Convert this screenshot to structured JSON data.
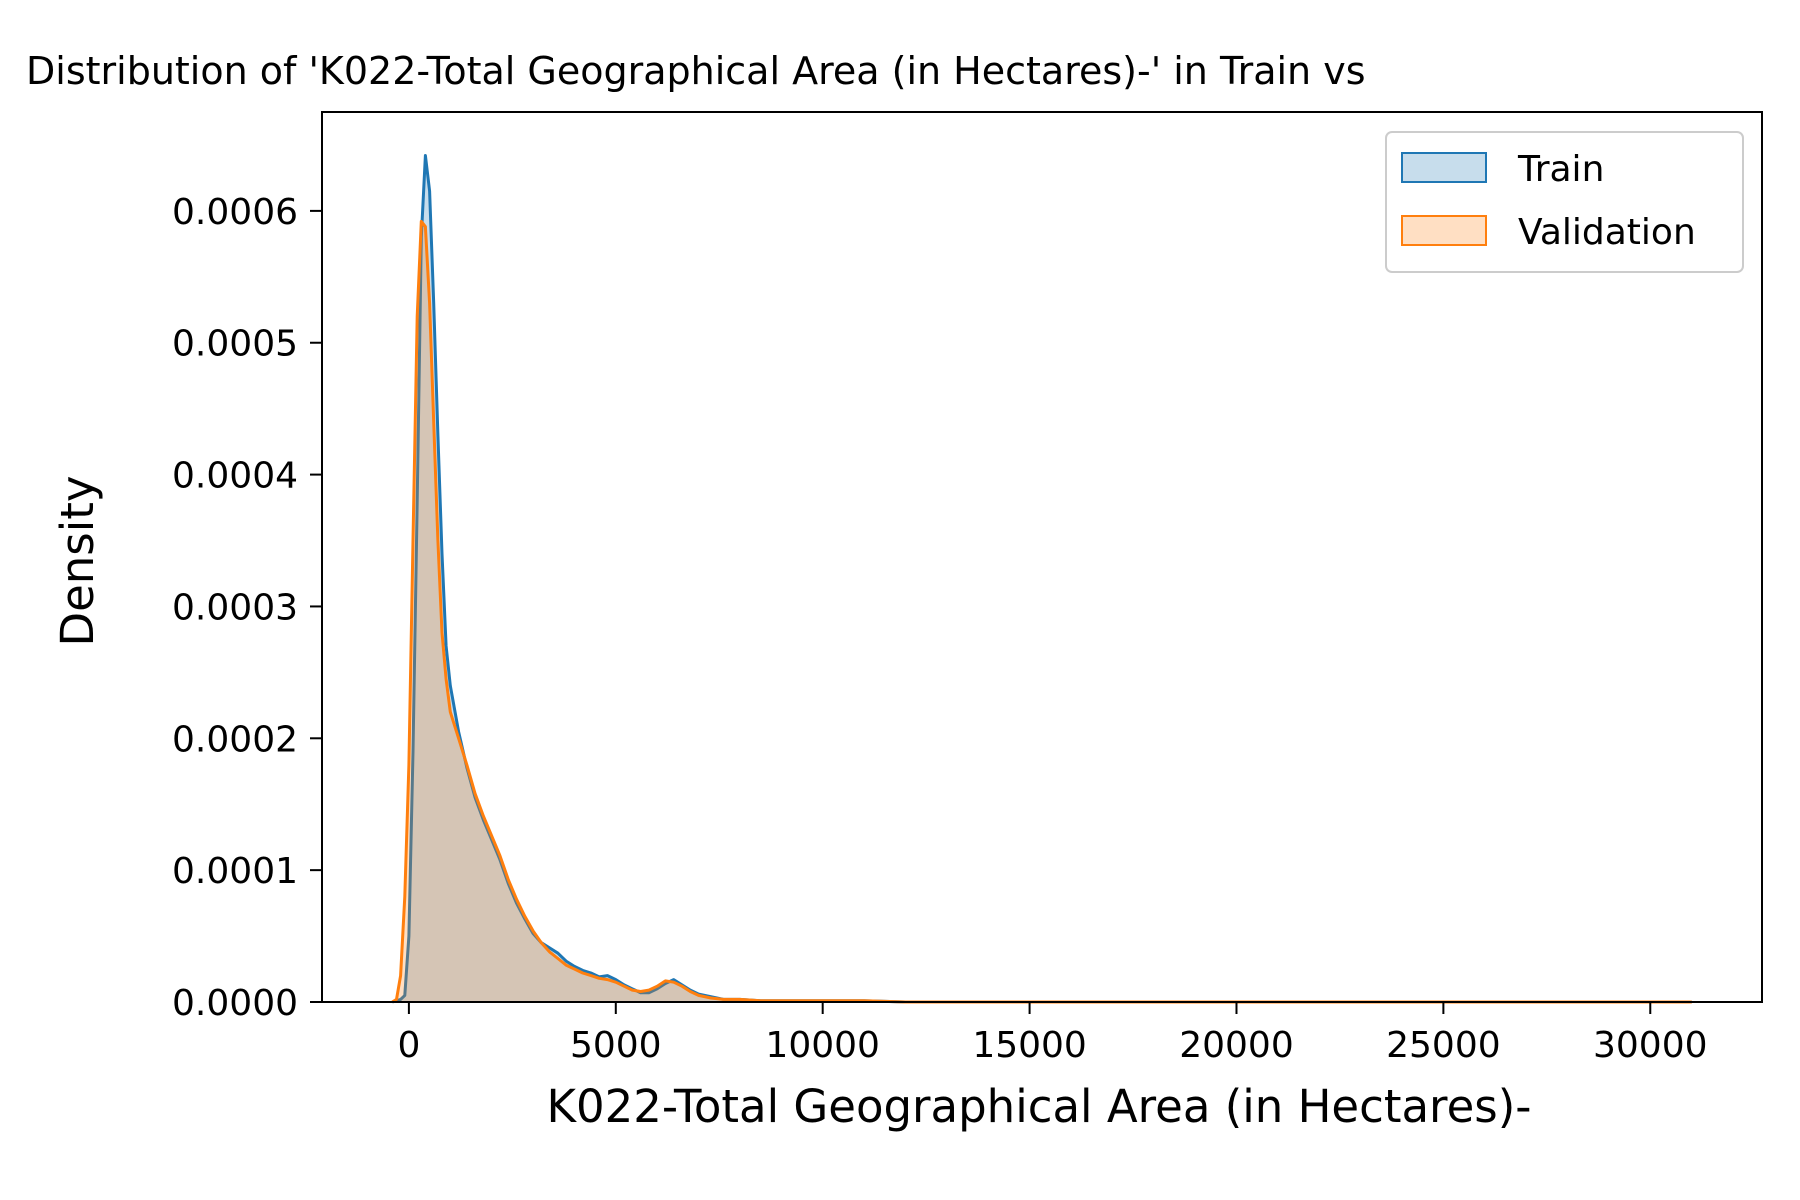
{
  "chart_data": {
    "type": "area",
    "title": "Distribution of 'K022-Total Geographical Area (in Hectares)-' in Train vs",
    "xlabel": "K022-Total Geographical Area (in Hectares)-",
    "ylabel": "Density",
    "xlim": [
      -2100,
      32700
    ],
    "ylim": [
      0,
      0.000675
    ],
    "xticks": [
      0,
      5000,
      10000,
      15000,
      20000,
      25000,
      30000
    ],
    "xtick_labels": [
      "0",
      "5000",
      "10000",
      "15000",
      "20000",
      "25000",
      "30000"
    ],
    "yticks": [
      0,
      0.0001,
      0.0002,
      0.0003,
      0.0004,
      0.0005,
      0.0006
    ],
    "ytick_labels": [
      "0.0000",
      "0.0001",
      "0.0002",
      "0.0003",
      "0.0004",
      "0.0005",
      "0.0006"
    ],
    "grid": false,
    "legend": {
      "position": "top-right",
      "entries": [
        "Train",
        "Validation"
      ]
    },
    "series": [
      {
        "name": "Train",
        "color": "#1f77b4",
        "fill": "#1f77b4",
        "fill_opacity": 0.25,
        "x": [
          -400,
          -200,
          -100,
          0,
          100,
          200,
          300,
          400,
          500,
          600,
          700,
          800,
          900,
          1000,
          1200,
          1400,
          1600,
          1800,
          2000,
          2200,
          2400,
          2600,
          2800,
          3000,
          3200,
          3400,
          3600,
          3800,
          4000,
          4200,
          4400,
          4600,
          4800,
          5000,
          5200,
          5400,
          5600,
          5800,
          6000,
          6200,
          6400,
          6600,
          6800,
          7000,
          7300,
          7600,
          8000,
          8500,
          9000,
          9500,
          10000,
          10500,
          11000,
          12000,
          14000,
          16000,
          18000,
          20000,
          22000,
          24000,
          26000,
          28000,
          30000,
          31000
        ],
        "y": [
          0,
          2e-06,
          5e-06,
          5e-05,
          0.00019,
          0.00038,
          0.00058,
          0.000642,
          0.000615,
          0.00053,
          0.00043,
          0.00034,
          0.00027,
          0.00024,
          0.000205,
          0.000178,
          0.000155,
          0.000138,
          0.000123,
          0.000108,
          9e-05,
          7.5e-05,
          6.3e-05,
          5.2e-05,
          4.5e-05,
          4.1e-05,
          3.7e-05,
          3.1e-05,
          2.7e-05,
          2.4e-05,
          2.2e-05,
          1.9e-05,
          2e-05,
          1.7e-05,
          1.3e-05,
          1e-05,
          7e-06,
          7e-06,
          1e-05,
          1.4e-05,
          1.7e-05,
          1.3e-05,
          9e-06,
          6e-06,
          4e-06,
          2e-06,
          2e-06,
          1e-06,
          1e-06,
          1e-06,
          1e-06,
          1e-06,
          1e-06,
          0,
          0,
          0,
          0,
          0,
          0,
          0,
          0,
          0,
          0,
          0
        ]
      },
      {
        "name": "Validation",
        "color": "#ff7f0e",
        "fill": "#ff7f0e",
        "fill_opacity": 0.25,
        "x": [
          -400,
          -300,
          -200,
          -100,
          0,
          100,
          200,
          300,
          400,
          500,
          600,
          700,
          800,
          900,
          1000,
          1200,
          1400,
          1600,
          1800,
          2000,
          2200,
          2400,
          2600,
          2800,
          3000,
          3200,
          3400,
          3600,
          3800,
          4000,
          4200,
          4400,
          4600,
          4800,
          5000,
          5200,
          5400,
          5600,
          5800,
          6000,
          6200,
          6400,
          6600,
          6800,
          7000,
          7300,
          7600,
          8000,
          8500,
          9000,
          9500,
          10000,
          10500,
          11000,
          12000,
          14000,
          16000,
          18000,
          20000,
          22000,
          24000,
          26000,
          28000,
          30000,
          31000
        ],
        "y": [
          0,
          2e-06,
          2e-05,
          8e-05,
          0.00018,
          0.00035,
          0.00052,
          0.000592,
          0.000588,
          0.00053,
          0.00044,
          0.00035,
          0.00028,
          0.000245,
          0.00022,
          0.0002,
          0.00018,
          0.000158,
          0.000141,
          0.000126,
          0.000111,
          9.3e-05,
          7.8e-05,
          6.5e-05,
          5.4e-05,
          4.5e-05,
          3.8e-05,
          3.3e-05,
          2.8e-05,
          2.5e-05,
          2.2e-05,
          2e-05,
          1.8e-05,
          1.7e-05,
          1.5e-05,
          1.2e-05,
          9e-06,
          8e-06,
          9e-06,
          1.2e-05,
          1.6e-05,
          1.5e-05,
          1.2e-05,
          8e-06,
          5e-06,
          3e-06,
          2e-06,
          2e-06,
          1e-06,
          1e-06,
          1e-06,
          1e-06,
          1e-06,
          1e-06,
          0,
          0,
          0,
          0,
          0,
          0,
          0,
          0,
          0,
          0,
          0
        ]
      }
    ]
  }
}
